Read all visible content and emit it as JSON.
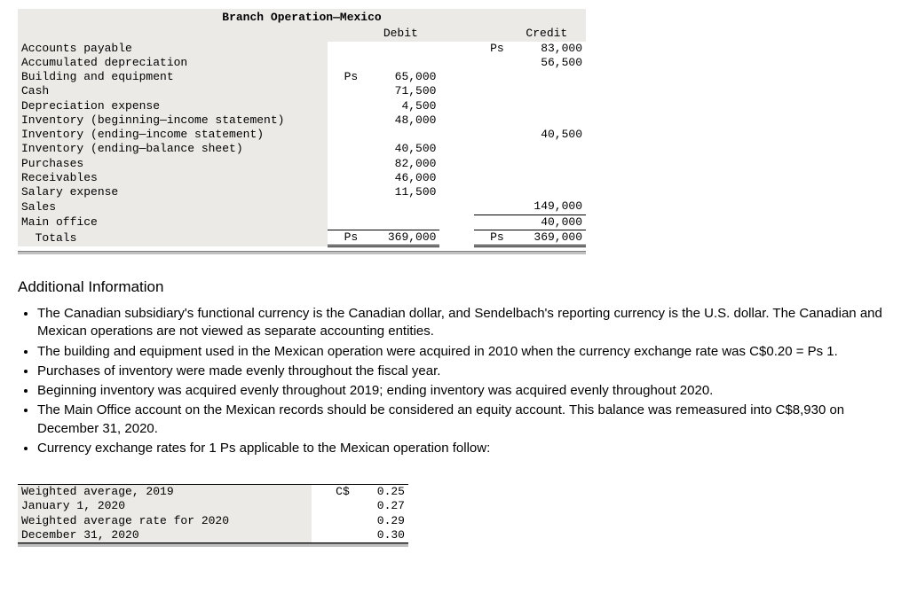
{
  "trial_balance": {
    "title": "Branch Operation—Mexico",
    "debit_header": "Debit",
    "credit_header": "Credit",
    "currency_symbol": "Ps",
    "rows": [
      {
        "account": "Accounts payable",
        "debit_cur": "",
        "debit": "",
        "credit_cur": "Ps",
        "credit": "83,000"
      },
      {
        "account": "Accumulated depreciation",
        "debit_cur": "",
        "debit": "",
        "credit_cur": "",
        "credit": "56,500"
      },
      {
        "account": "Building and equipment",
        "debit_cur": "Ps",
        "debit": "65,000",
        "credit_cur": "",
        "credit": ""
      },
      {
        "account": "Cash",
        "debit_cur": "",
        "debit": "71,500",
        "credit_cur": "",
        "credit": ""
      },
      {
        "account": "Depreciation expense",
        "debit_cur": "",
        "debit": "4,500",
        "credit_cur": "",
        "credit": ""
      },
      {
        "account": "Inventory (beginning—income statement)",
        "debit_cur": "",
        "debit": "48,000",
        "credit_cur": "",
        "credit": ""
      },
      {
        "account": "Inventory (ending—income statement)",
        "debit_cur": "",
        "debit": "",
        "credit_cur": "",
        "credit": "40,500"
      },
      {
        "account": "Inventory (ending—balance sheet)",
        "debit_cur": "",
        "debit": "40,500",
        "credit_cur": "",
        "credit": ""
      },
      {
        "account": "Purchases",
        "debit_cur": "",
        "debit": "82,000",
        "credit_cur": "",
        "credit": ""
      },
      {
        "account": "Receivables",
        "debit_cur": "",
        "debit": "46,000",
        "credit_cur": "",
        "credit": ""
      },
      {
        "account": "Salary expense",
        "debit_cur": "",
        "debit": "11,500",
        "credit_cur": "",
        "credit": ""
      },
      {
        "account": "Sales",
        "debit_cur": "",
        "debit": "",
        "credit_cur": "",
        "credit": "149,000"
      },
      {
        "account": "Main office",
        "debit_cur": "",
        "debit": "",
        "credit_cur": "",
        "credit": "40,000"
      }
    ],
    "totals": {
      "label": "  Totals",
      "debit_cur": "Ps",
      "debit": "369,000",
      "credit_cur": "Ps",
      "credit": "369,000"
    }
  },
  "additional_info_heading": "Additional Information",
  "info_items": [
    "The Canadian subsidiary's functional currency is the Canadian dollar, and Sendelbach's reporting currency is the U.S. dollar. The Canadian and Mexican operations are not viewed as separate accounting entities.",
    "The building and equipment used in the Mexican operation were acquired in 2010 when the currency exchange rate was C$0.20 = Ps 1.",
    "Purchases of inventory were made evenly throughout the fiscal year.",
    "Beginning inventory was acquired evenly throughout 2019; ending inventory was acquired evenly throughout 2020.",
    "The Main Office account on the Mexican records should be considered an equity account. This balance was remeasured into C$8,930 on December 31, 2020.",
    "Currency exchange rates for 1 Ps applicable to the Mexican operation follow:"
  ],
  "rates": {
    "currency_symbol": "C$",
    "rows": [
      {
        "label": "Weighted average, 2019",
        "cur": "C$",
        "value": "0.25"
      },
      {
        "label": "January 1, 2020",
        "cur": "",
        "value": "0.27"
      },
      {
        "label": "Weighted average rate for 2020",
        "cur": "",
        "value": "0.29"
      },
      {
        "label": "December 31, 2020",
        "cur": "",
        "value": "0.30"
      }
    ]
  }
}
